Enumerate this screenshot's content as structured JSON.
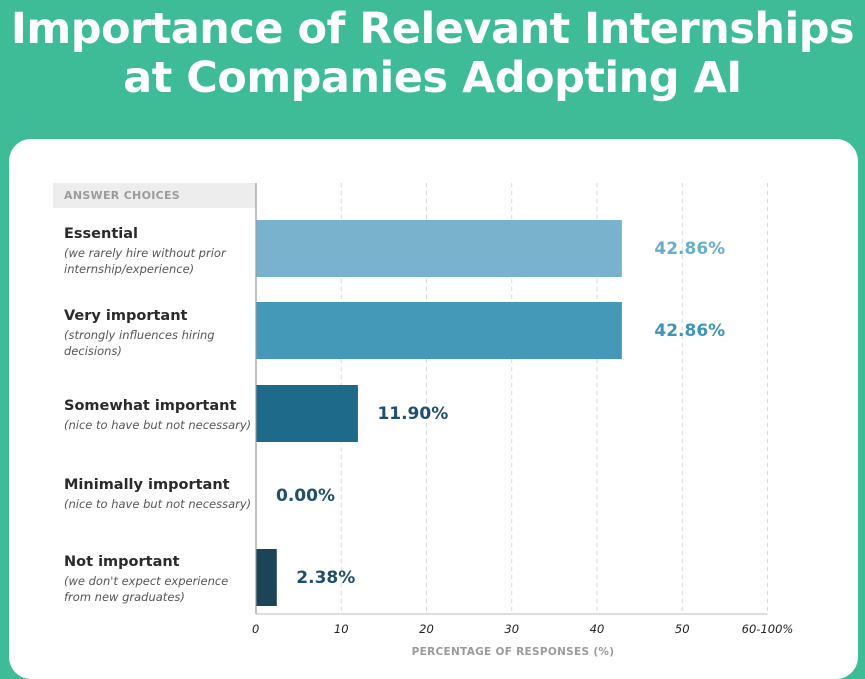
{
  "chart_data": {
    "type": "bar",
    "orientation": "horizontal",
    "title": [
      "Importance of Relevant Internships",
      "at Companies Adopting AI"
    ],
    "header": "ANSWER CHOICES",
    "categories": [
      {
        "name": "Essential",
        "description": [
          "(we rarely hire without prior",
          "internship/experience)"
        ]
      },
      {
        "name": "Very important",
        "description": [
          "(strongly influences hiring",
          "decisions)"
        ]
      },
      {
        "name": "Somewhat important",
        "description": [
          "(nice to have but not necessary)"
        ]
      },
      {
        "name": "Minimally important",
        "description": [
          "(nice to have but not necessary)"
        ]
      },
      {
        "name": "Not important",
        "description": [
          "(we don't expect experience",
          "from new graduates)"
        ]
      }
    ],
    "values": [
      42.86,
      42.86,
      11.9,
      0.0,
      2.38
    ],
    "value_labels": [
      "42.86%",
      "42.86%",
      "11.90%",
      "0.00%",
      "2.38%"
    ],
    "bar_colors": [
      "#78b2cd",
      "#4599b8",
      "#1e6a8b",
      "#1e6a8b",
      "#1c4457"
    ],
    "label_colors": [
      "#6aaecd",
      "#3e94b9",
      "#1f4f6b",
      "#1f4f6b",
      "#1f4f6b"
    ],
    "xticks": [
      "0",
      "10",
      "20",
      "30",
      "40",
      "50",
      "60-100%"
    ],
    "xlim": [
      0,
      60
    ],
    "xlabel": "PERCENTAGE OF RESPONSES (%)",
    "grid": "vertical dashed"
  }
}
